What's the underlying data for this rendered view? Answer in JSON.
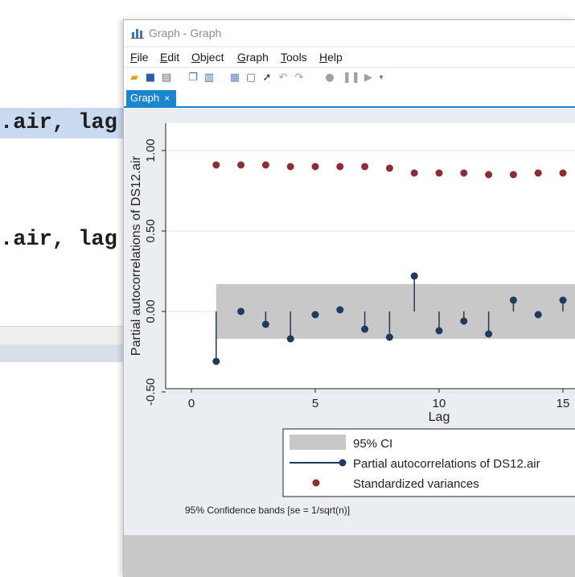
{
  "editor": {
    "line1": ".air, lag",
    "line2": ".air, lag"
  },
  "window": {
    "title": "Graph - Graph",
    "menu": [
      "File",
      "Edit",
      "Object",
      "Graph",
      "Tools",
      "Help"
    ],
    "tab_label": "Graph",
    "tab_close": "×"
  },
  "toolbar_icons": [
    "open-icon",
    "save-icon",
    "print-icon",
    "copy-icon",
    "paste-icon",
    "graph-editor-icon",
    "recorder-icon",
    "pointer-icon",
    "undo-icon",
    "redo-icon",
    "record-icon",
    "pause-icon",
    "play-icon",
    "more-icon"
  ],
  "colors": {
    "accent": "#1a85d1",
    "pac_series": "#1f3a5f",
    "variance_series": "#8b2d35",
    "ci_band": "#c8c8c8"
  },
  "chart_data": {
    "type": "scatter",
    "xlabel": "Lag",
    "ylabel": "Partial autocorrelations of DS12.air",
    "xlim": [
      0,
      15
    ],
    "ylim": [
      -0.5,
      1.0
    ],
    "xticks": [
      "0",
      "5",
      "10",
      "15"
    ],
    "yticks": [
      "-0.50",
      "0.00",
      "0.50",
      "1.00"
    ],
    "ci_band": {
      "lower": -0.17,
      "upper": 0.17
    },
    "series": [
      {
        "name": "Partial autocorrelations of DS12.air",
        "style": "spike",
        "x": [
          1,
          2,
          3,
          4,
          5,
          6,
          7,
          8,
          9,
          10,
          11,
          12,
          13,
          14,
          15
        ],
        "values": [
          -0.31,
          0.0,
          -0.08,
          -0.17,
          -0.02,
          0.01,
          -0.11,
          -0.16,
          0.22,
          -0.12,
          -0.06,
          -0.14,
          0.07,
          -0.02,
          0.07
        ]
      },
      {
        "name": "Standardized variances",
        "style": "points",
        "x": [
          1,
          2,
          3,
          4,
          5,
          6,
          7,
          8,
          9,
          10,
          11,
          12,
          13,
          14,
          15
        ],
        "values": [
          0.91,
          0.91,
          0.91,
          0.9,
          0.9,
          0.9,
          0.9,
          0.89,
          0.86,
          0.86,
          0.86,
          0.85,
          0.85,
          0.86,
          0.86
        ]
      }
    ],
    "legend": [
      "95% CI",
      "Partial autocorrelations of DS12.air",
      "Standardized variances"
    ],
    "note": "95% Confidence bands [se = 1/sqrt(n)]"
  }
}
